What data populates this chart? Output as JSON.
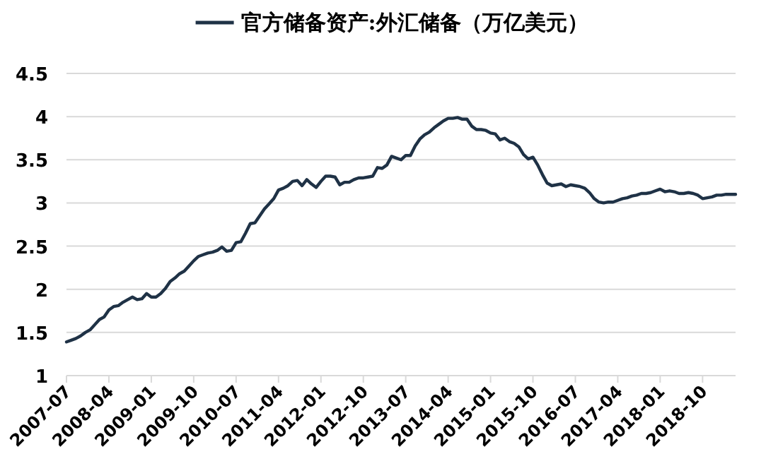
{
  "chart_data": {
    "type": "line",
    "legend": "top",
    "grid": "y",
    "marker": "none",
    "line_style": "solid",
    "ylim": [
      1,
      4.5
    ],
    "yticks": [
      1,
      1.5,
      2,
      2.5,
      3,
      3.5,
      4,
      4.5
    ],
    "xlim": [
      "2007-07",
      "2019-05"
    ],
    "xticks": [
      "2007-07",
      "2008-04",
      "2009-01",
      "2009-10",
      "2010-07",
      "2011-04",
      "2012-01",
      "2012-10",
      "2013-07",
      "2014-04",
      "2015-01",
      "2015-10",
      "2016-07",
      "2017-04",
      "2018-01",
      "2018-10"
    ],
    "x": [
      "2007-07",
      "2007-08",
      "2007-09",
      "2007-10",
      "2007-11",
      "2007-12",
      "2008-01",
      "2008-02",
      "2008-03",
      "2008-04",
      "2008-05",
      "2008-06",
      "2008-07",
      "2008-08",
      "2008-09",
      "2008-10",
      "2008-11",
      "2008-12",
      "2009-01",
      "2009-02",
      "2009-03",
      "2009-04",
      "2009-05",
      "2009-06",
      "2009-07",
      "2009-08",
      "2009-09",
      "2009-10",
      "2009-11",
      "2009-12",
      "2010-01",
      "2010-02",
      "2010-03",
      "2010-04",
      "2010-05",
      "2010-06",
      "2010-07",
      "2010-08",
      "2010-09",
      "2010-10",
      "2010-11",
      "2010-12",
      "2011-01",
      "2011-02",
      "2011-03",
      "2011-04",
      "2011-05",
      "2011-06",
      "2011-07",
      "2011-08",
      "2011-09",
      "2011-10",
      "2011-11",
      "2011-12",
      "2012-01",
      "2012-02",
      "2012-03",
      "2012-04",
      "2012-05",
      "2012-06",
      "2012-07",
      "2012-08",
      "2012-09",
      "2012-10",
      "2012-11",
      "2012-12",
      "2013-01",
      "2013-02",
      "2013-03",
      "2013-04",
      "2013-05",
      "2013-06",
      "2013-07",
      "2013-08",
      "2013-09",
      "2013-10",
      "2013-11",
      "2013-12",
      "2014-01",
      "2014-02",
      "2014-03",
      "2014-04",
      "2014-05",
      "2014-06",
      "2014-07",
      "2014-08",
      "2014-09",
      "2014-10",
      "2014-11",
      "2014-12",
      "2015-01",
      "2015-02",
      "2015-03",
      "2015-04",
      "2015-05",
      "2015-06",
      "2015-07",
      "2015-08",
      "2015-09",
      "2015-10",
      "2015-11",
      "2015-12",
      "2016-01",
      "2016-02",
      "2016-03",
      "2016-04",
      "2016-05",
      "2016-06",
      "2016-07",
      "2016-08",
      "2016-09",
      "2016-10",
      "2016-11",
      "2016-12",
      "2017-01",
      "2017-02",
      "2017-03",
      "2017-04",
      "2017-05",
      "2017-06",
      "2017-07",
      "2017-08",
      "2017-09",
      "2017-10",
      "2017-11",
      "2017-12",
      "2018-01",
      "2018-02",
      "2018-03",
      "2018-04",
      "2018-05",
      "2018-06",
      "2018-07",
      "2018-08",
      "2018-09",
      "2018-10",
      "2018-11",
      "2018-12",
      "2019-01",
      "2019-02",
      "2019-03",
      "2019-04",
      "2019-05"
    ],
    "series": [
      {
        "name": "官方储备资产:外汇储备（万亿美元）",
        "color": "#1f3246",
        "values": [
          1.39,
          1.41,
          1.43,
          1.46,
          1.5,
          1.53,
          1.59,
          1.65,
          1.68,
          1.76,
          1.8,
          1.81,
          1.85,
          1.88,
          1.91,
          1.88,
          1.89,
          1.95,
          1.91,
          1.91,
          1.95,
          2.01,
          2.09,
          2.13,
          2.18,
          2.21,
          2.27,
          2.33,
          2.38,
          2.4,
          2.42,
          2.43,
          2.45,
          2.49,
          2.44,
          2.45,
          2.54,
          2.55,
          2.65,
          2.76,
          2.77,
          2.85,
          2.93,
          2.99,
          3.05,
          3.15,
          3.17,
          3.2,
          3.25,
          3.26,
          3.2,
          3.27,
          3.22,
          3.18,
          3.25,
          3.31,
          3.31,
          3.3,
          3.21,
          3.24,
          3.24,
          3.27,
          3.29,
          3.29,
          3.3,
          3.31,
          3.41,
          3.4,
          3.44,
          3.54,
          3.52,
          3.5,
          3.55,
          3.55,
          3.66,
          3.74,
          3.79,
          3.82,
          3.87,
          3.91,
          3.95,
          3.98,
          3.98,
          3.99,
          3.97,
          3.97,
          3.89,
          3.85,
          3.85,
          3.84,
          3.81,
          3.8,
          3.73,
          3.75,
          3.71,
          3.69,
          3.65,
          3.56,
          3.51,
          3.53,
          3.44,
          3.33,
          3.23,
          3.2,
          3.21,
          3.22,
          3.19,
          3.21,
          3.2,
          3.19,
          3.17,
          3.12,
          3.05,
          3.01,
          3.0,
          3.01,
          3.01,
          3.03,
          3.05,
          3.06,
          3.08,
          3.09,
          3.11,
          3.11,
          3.12,
          3.14,
          3.16,
          3.13,
          3.14,
          3.13,
          3.11,
          3.11,
          3.12,
          3.11,
          3.09,
          3.05,
          3.06,
          3.07,
          3.09,
          3.09,
          3.1,
          3.1,
          3.1
        ]
      }
    ]
  }
}
